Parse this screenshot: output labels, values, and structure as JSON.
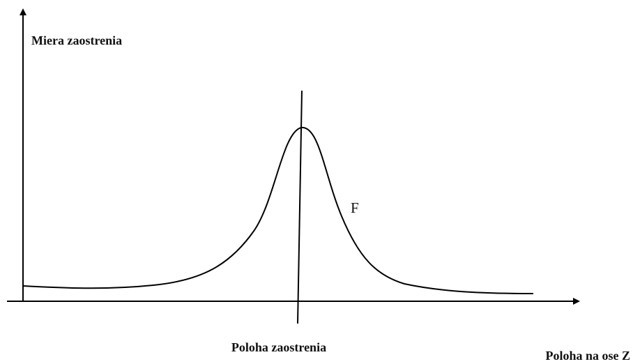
{
  "y_axis_label": "Miera zaostrenia",
  "x_axis_label": "Poloha na ose Z",
  "focus_label": "Poloha zaostrenia",
  "curve_label": "F"
}
